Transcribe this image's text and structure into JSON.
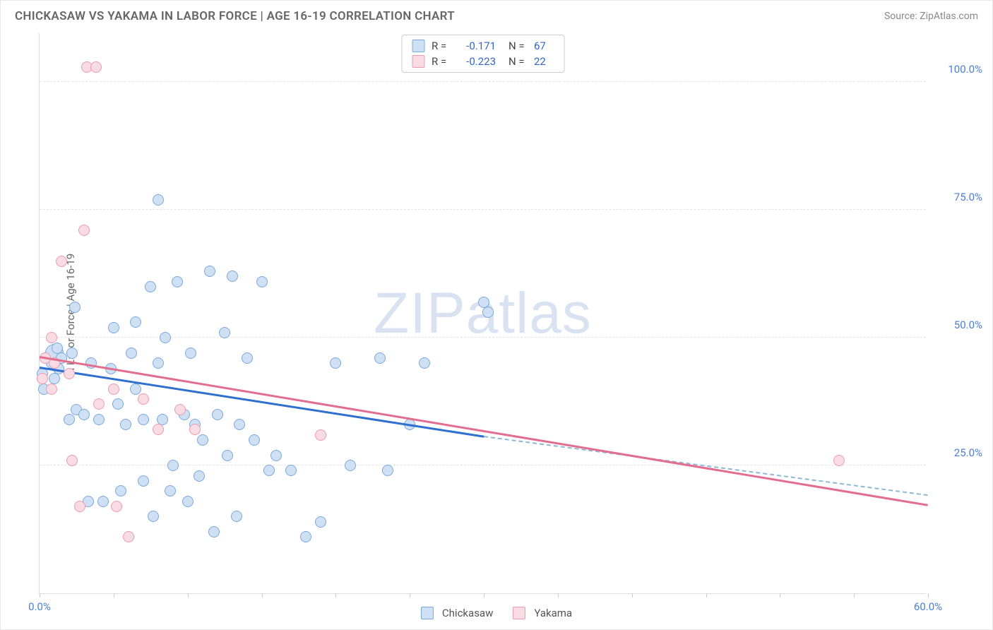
{
  "title": "CHICKASAW VS YAKAMA IN LABOR FORCE | AGE 16-19 CORRELATION CHART",
  "source": "Source: ZipAtlas.com",
  "ylabel": "In Labor Force | Age 16-19",
  "watermark": "ZIPatlas",
  "chart": {
    "type": "scatter",
    "xlim": [
      0,
      60
    ],
    "ylim": [
      0,
      110
    ],
    "xticks": [
      0,
      5,
      10,
      15,
      20,
      25,
      30,
      35,
      40,
      45,
      50,
      55,
      60
    ],
    "xtick_labels": {
      "0": "0.0%",
      "60": "60.0%"
    },
    "yticks": [
      25,
      50,
      75,
      100
    ],
    "ytick_labels": {
      "25": "25.0%",
      "50": "50.0%",
      "75": "75.0%",
      "100": "100.0%"
    },
    "background_color": "#ffffff",
    "grid_color": "#e4e4e4",
    "axis_color": "#dddddd",
    "tick_label_color": "#4a7fd6",
    "axis_label_color": "#666666",
    "title_color": "#666666",
    "marker_radius": 8,
    "large_marker_radius": 13,
    "series": [
      {
        "name": "Chickasaw",
        "fill": "#cfe0f5",
        "stroke": "#7ba7db",
        "trend_color": "#2f6fd0",
        "trend_dash_color": "#8db8d6",
        "R": "-0.171",
        "N": "67",
        "trend": {
          "x0": 0,
          "y0": 44,
          "x1_solid": 30,
          "y1_solid": 30.5,
          "x1_dash": 60,
          "y1_dash": 19
        },
        "points": [
          {
            "x": 0.2,
            "y": 43
          },
          {
            "x": 0.3,
            "y": 40
          },
          {
            "x": 0.5,
            "y": 46
          },
          {
            "x": 0.8,
            "y": 45
          },
          {
            "x": 1.0,
            "y": 47,
            "r": 13
          },
          {
            "x": 1.0,
            "y": 42
          },
          {
            "x": 1.2,
            "y": 48
          },
          {
            "x": 1.3,
            "y": 44
          },
          {
            "x": 1.5,
            "y": 46
          },
          {
            "x": 2.0,
            "y": 34
          },
          {
            "x": 2.2,
            "y": 47
          },
          {
            "x": 2.4,
            "y": 56
          },
          {
            "x": 2.5,
            "y": 36
          },
          {
            "x": 3.0,
            "y": 35
          },
          {
            "x": 3.3,
            "y": 18
          },
          {
            "x": 3.5,
            "y": 45
          },
          {
            "x": 4.0,
            "y": 34
          },
          {
            "x": 4.3,
            "y": 18
          },
          {
            "x": 4.8,
            "y": 44
          },
          {
            "x": 5.0,
            "y": 52
          },
          {
            "x": 5.3,
            "y": 37
          },
          {
            "x": 5.5,
            "y": 20
          },
          {
            "x": 5.8,
            "y": 33
          },
          {
            "x": 6.2,
            "y": 47
          },
          {
            "x": 6.5,
            "y": 40
          },
          {
            "x": 6.5,
            "y": 53
          },
          {
            "x": 7.0,
            "y": 34
          },
          {
            "x": 7.0,
            "y": 22
          },
          {
            "x": 7.5,
            "y": 60
          },
          {
            "x": 7.7,
            "y": 15
          },
          {
            "x": 8.0,
            "y": 77
          },
          {
            "x": 8.0,
            "y": 45
          },
          {
            "x": 8.3,
            "y": 34
          },
          {
            "x": 8.5,
            "y": 50
          },
          {
            "x": 8.8,
            "y": 20
          },
          {
            "x": 9.0,
            "y": 25
          },
          {
            "x": 9.3,
            "y": 61
          },
          {
            "x": 9.8,
            "y": 35
          },
          {
            "x": 10.0,
            "y": 18
          },
          {
            "x": 10.2,
            "y": 47
          },
          {
            "x": 10.5,
            "y": 33
          },
          {
            "x": 10.8,
            "y": 23
          },
          {
            "x": 11.0,
            "y": 30
          },
          {
            "x": 11.5,
            "y": 63
          },
          {
            "x": 11.8,
            "y": 12
          },
          {
            "x": 12.0,
            "y": 35
          },
          {
            "x": 12.5,
            "y": 51
          },
          {
            "x": 12.7,
            "y": 27
          },
          {
            "x": 13.0,
            "y": 62
          },
          {
            "x": 13.3,
            "y": 15
          },
          {
            "x": 13.5,
            "y": 33
          },
          {
            "x": 14.0,
            "y": 46
          },
          {
            "x": 14.5,
            "y": 30
          },
          {
            "x": 15.0,
            "y": 61
          },
          {
            "x": 15.5,
            "y": 24
          },
          {
            "x": 16.0,
            "y": 27
          },
          {
            "x": 17.0,
            "y": 24
          },
          {
            "x": 18.0,
            "y": 11
          },
          {
            "x": 19.0,
            "y": 14
          },
          {
            "x": 20.0,
            "y": 45
          },
          {
            "x": 21.0,
            "y": 25
          },
          {
            "x": 23.0,
            "y": 46
          },
          {
            "x": 23.5,
            "y": 24
          },
          {
            "x": 25.0,
            "y": 33
          },
          {
            "x": 26.0,
            "y": 45
          },
          {
            "x": 30.0,
            "y": 57
          },
          {
            "x": 30.3,
            "y": 55
          }
        ]
      },
      {
        "name": "Yakama",
        "fill": "#f8dbe3",
        "stroke": "#e89bb1",
        "trend_color": "#e36d8e",
        "R": "-0.223",
        "N": "22",
        "trend": {
          "x0": 0,
          "y0": 46,
          "x1_solid": 60,
          "y1_solid": 17,
          "x1_dash": 60,
          "y1_dash": 17
        },
        "points": [
          {
            "x": 0.2,
            "y": 42
          },
          {
            "x": 0.4,
            "y": 46
          },
          {
            "x": 0.8,
            "y": 50
          },
          {
            "x": 0.8,
            "y": 40
          },
          {
            "x": 1.0,
            "y": 45
          },
          {
            "x": 1.5,
            "y": 65
          },
          {
            "x": 2.0,
            "y": 43
          },
          {
            "x": 2.2,
            "y": 26
          },
          {
            "x": 2.7,
            "y": 17
          },
          {
            "x": 3.0,
            "y": 71
          },
          {
            "x": 3.2,
            "y": 103
          },
          {
            "x": 3.8,
            "y": 103
          },
          {
            "x": 4.0,
            "y": 37
          },
          {
            "x": 5.0,
            "y": 40
          },
          {
            "x": 5.2,
            "y": 17
          },
          {
            "x": 6.0,
            "y": 11
          },
          {
            "x": 7.0,
            "y": 38
          },
          {
            "x": 8.0,
            "y": 32
          },
          {
            "x": 9.5,
            "y": 36
          },
          {
            "x": 10.5,
            "y": 32
          },
          {
            "x": 19.0,
            "y": 31
          },
          {
            "x": 54.0,
            "y": 26
          }
        ]
      }
    ]
  },
  "legend": {
    "bottom": [
      {
        "label": "Chickasaw",
        "fill": "#cfe0f5",
        "stroke": "#7ba7db"
      },
      {
        "label": "Yakama",
        "fill": "#f8dbe3",
        "stroke": "#e89bb1"
      }
    ]
  }
}
